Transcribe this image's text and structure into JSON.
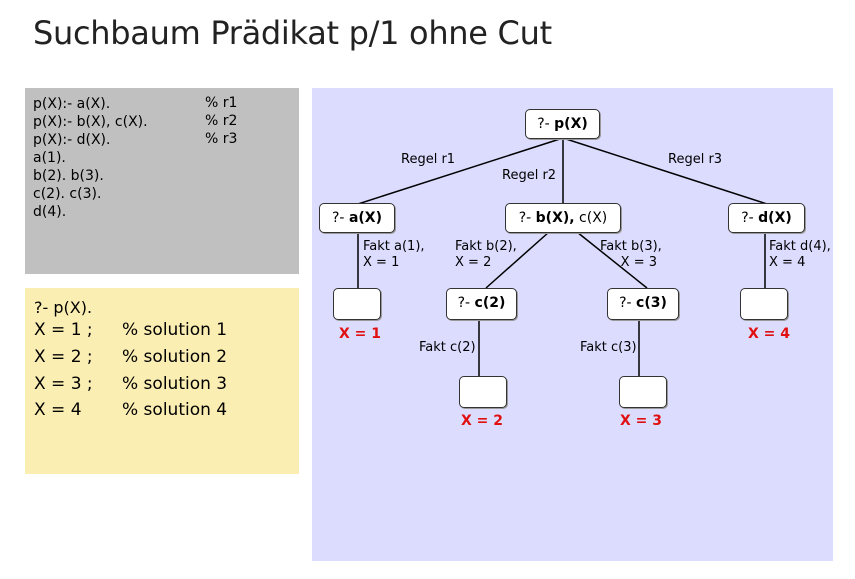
{
  "title": "Suchbaum Prädikat p/1 ohne Cut",
  "program": {
    "lines": [
      "p(X):- a(X).",
      "p(X):- b(X), c(X).",
      "p(X):- d(X).",
      "a(1).",
      "b(2). b(3).",
      "c(2). c(3).",
      "d(4)."
    ],
    "comments": [
      "% r1",
      "% r2",
      "% r3"
    ]
  },
  "answers": {
    "query": "?- p(X).",
    "rows": [
      {
        "binding": "X = 1 ;",
        "comment": "% solution 1"
      },
      {
        "binding": "X = 2 ;",
        "comment": "% solution 2"
      },
      {
        "binding": "X = 3 ;",
        "comment": "% solution 3"
      },
      {
        "binding": "X = 4",
        "comment": "% solution 4"
      }
    ]
  },
  "tree": {
    "root": {
      "prefix": "?- ",
      "goal": "p(X)"
    },
    "rule_labels": [
      "Regel r1",
      "Regel r2",
      "Regel r3"
    ],
    "level1": [
      {
        "prefix": "?- ",
        "goal": "a(X)",
        "rest": ""
      },
      {
        "prefix": "?- ",
        "goal": "b(X),",
        "rest": " c(X)"
      },
      {
        "prefix": "?- ",
        "goal": "d(X)",
        "rest": ""
      }
    ],
    "edge_labels": {
      "fakt_a": "Fakt a(1),\nX = 1",
      "fakt_b2": "Fakt b(2),\nX = 2",
      "fakt_b3": "Fakt b(3),\n     X = 3",
      "fakt_d": "Fakt d(4),\nX = 4",
      "fakt_c2": "Fakt c(2)",
      "fakt_c3": "Fakt c(3)"
    },
    "level2": [
      {
        "prefix": "?- ",
        "goal": "c(2)"
      },
      {
        "prefix": "?- ",
        "goal": "c(3)"
      }
    ],
    "results": [
      "X = 1",
      "X = 2",
      "X = 3",
      "X = 4"
    ]
  },
  "colors": {
    "program_bg": "#c0c0c0",
    "answers_bg": "#fbeeb3",
    "tree_bg": "#dcdcff",
    "result_red": "#e01010"
  }
}
